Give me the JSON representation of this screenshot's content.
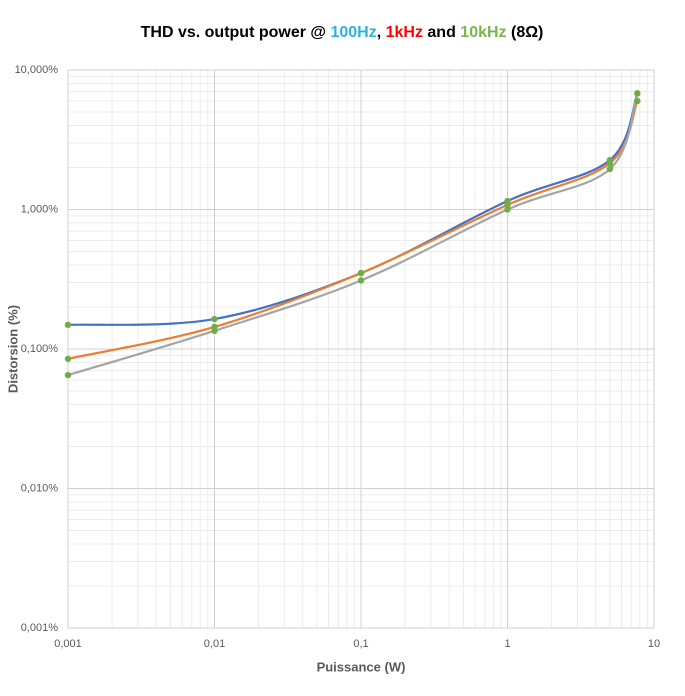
{
  "chart_data": {
    "type": "line",
    "title_parts": [
      {
        "text": "THD vs. output power @ ",
        "color": "#000000"
      },
      {
        "text": "100Hz",
        "color": "#2bb3e3"
      },
      {
        "text": ", ",
        "color": "#000000"
      },
      {
        "text": "1kHz",
        "color": "#ff0000"
      },
      {
        "text": " and ",
        "color": "#000000"
      },
      {
        "text": "10kHz",
        "color": "#7ab648"
      },
      {
        "text": " (8Ω)",
        "color": "#000000"
      }
    ],
    "x_label": "Puissance (W)",
    "y_label": "Distorsion  (%)",
    "x": [
      0.001,
      0.01,
      0.1,
      1,
      5,
      7.7
    ],
    "series": [
      {
        "color": "#4472c4",
        "values": [
          0.149,
          0.164,
          0.35,
          1.15,
          2.26,
          6.8
        ]
      },
      {
        "color": "#ed7d31",
        "values": [
          0.085,
          0.144,
          0.35,
          1.08,
          2.15,
          6.0
        ]
      },
      {
        "color": "#a5a5a5",
        "values": [
          0.065,
          0.135,
          0.31,
          1.0,
          1.95,
          6.8
        ]
      }
    ],
    "marker_color": "#70ad47",
    "xscale": "log",
    "yscale": "log",
    "xlim": [
      0.001,
      10
    ],
    "ylim": [
      0.001,
      10
    ],
    "xticks": [
      {
        "value": 0.001,
        "label": "0,001"
      },
      {
        "value": 0.01,
        "label": "0,01"
      },
      {
        "value": 0.1,
        "label": "0,1"
      },
      1,
      10
    ],
    "yticks": [
      {
        "value": 0.001,
        "label": "0,001%"
      },
      {
        "value": 0.01,
        "label": "0,010%"
      },
      {
        "value": 0.1,
        "label": "0,100%"
      },
      {
        "value": 1,
        "label": "1,000%"
      },
      {
        "value": 10,
        "label": "10,000%"
      }
    ],
    "grid": true,
    "minor_grid": true
  }
}
